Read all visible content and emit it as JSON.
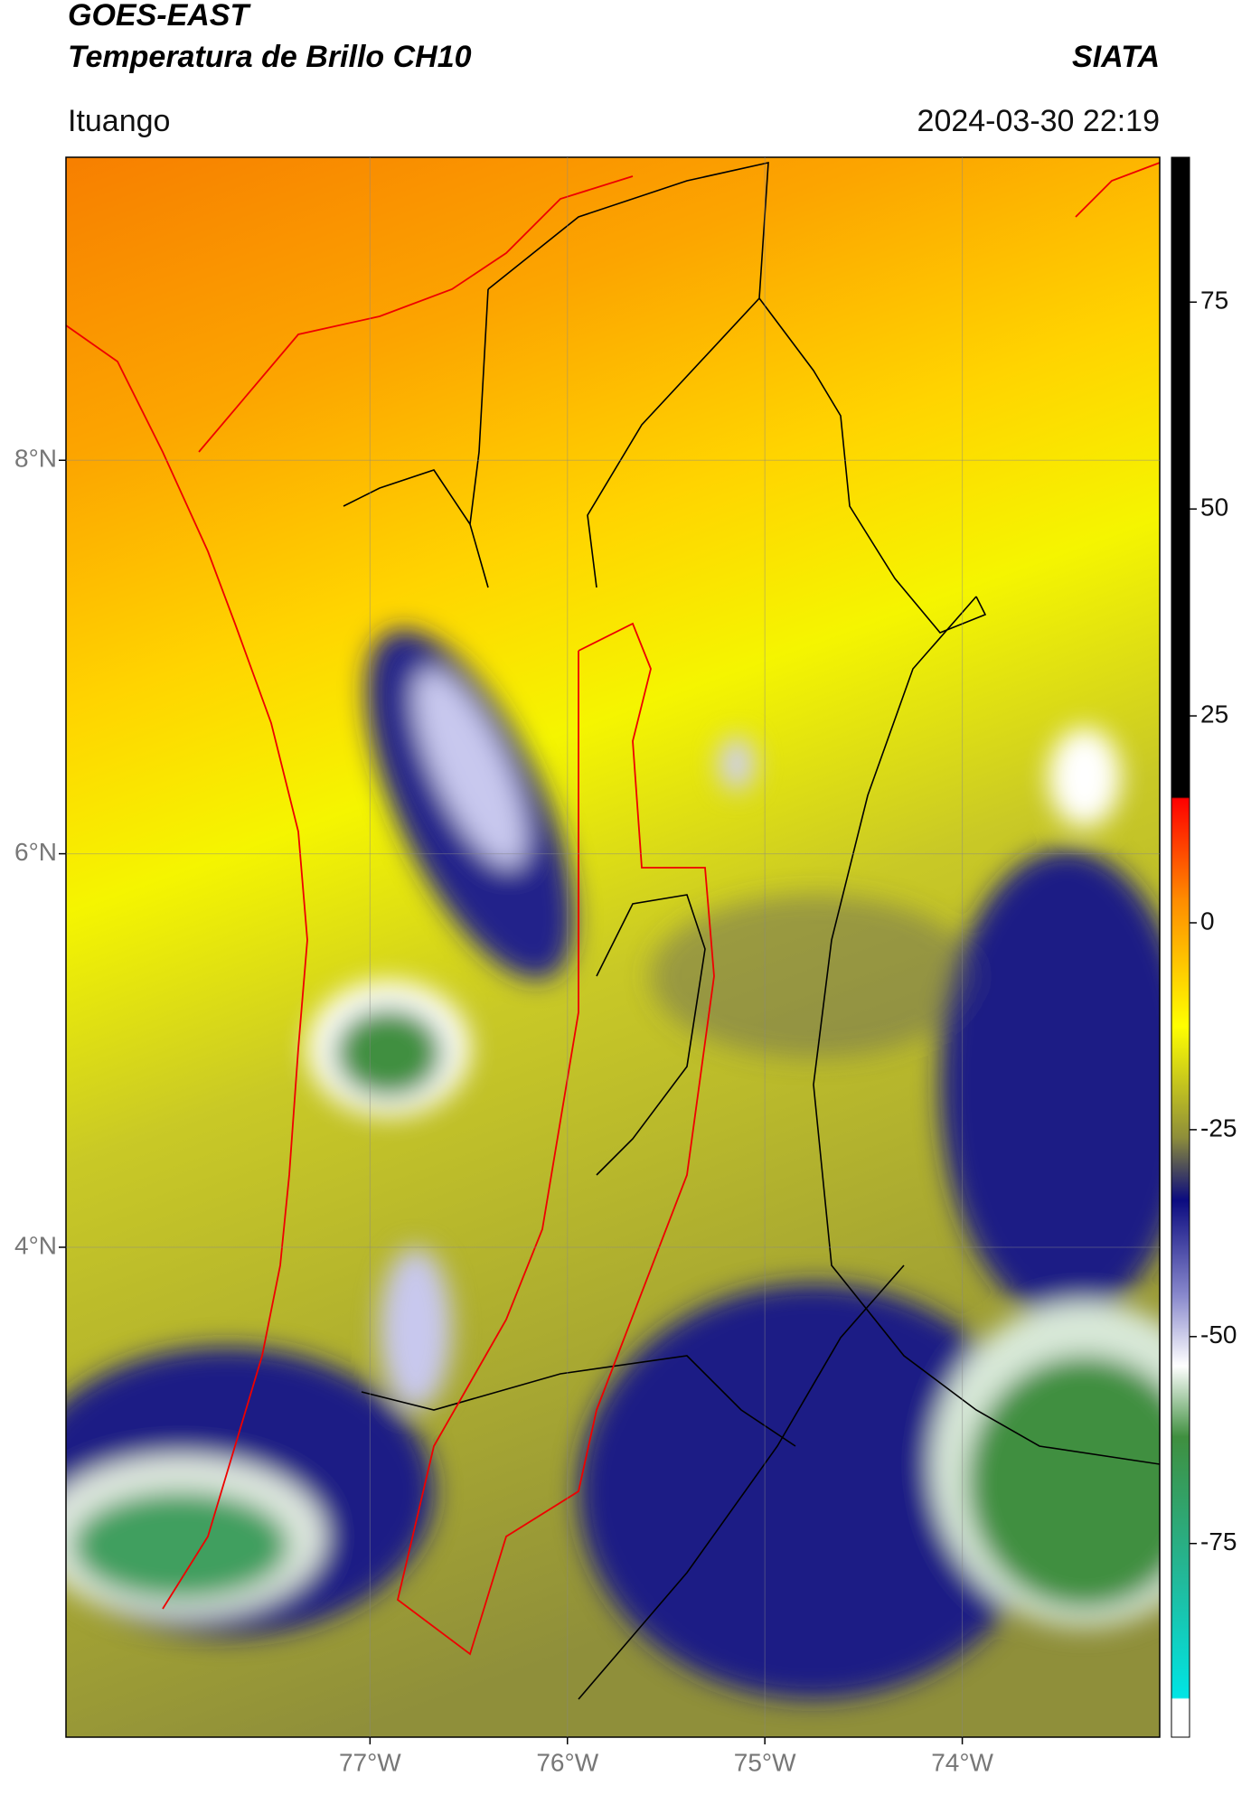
{
  "header": {
    "title": "GOES-EAST",
    "subtitle": "Temperatura de Brillo CH10",
    "brand": "SIATA",
    "location": "Ituango",
    "timestamp": "2024-03-30 22:19"
  },
  "map": {
    "xlim": [
      -78.54,
      -73.0
    ],
    "ylim": [
      1.51,
      9.54
    ],
    "lat_ticks": [
      {
        "value": 8,
        "label": "8°N"
      },
      {
        "value": 6,
        "label": "6°N"
      },
      {
        "value": 4,
        "label": "4°N"
      }
    ],
    "lon_ticks": [
      {
        "value": -77,
        "label": "77°W"
      },
      {
        "value": -76,
        "label": "76°W"
      },
      {
        "value": -75,
        "label": "75°W"
      },
      {
        "value": -74,
        "label": "74°W"
      }
    ]
  },
  "colorbar": {
    "range": [
      -98.4,
      92.5
    ],
    "ticks": [
      75,
      50,
      25,
      0,
      -25,
      -50,
      -75
    ]
  }
}
